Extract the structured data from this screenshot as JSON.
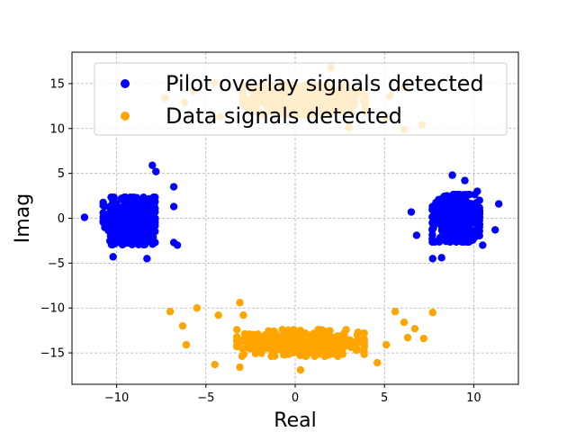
{
  "chart_data": {
    "type": "scatter",
    "title": "",
    "xlabel": "Real",
    "ylabel": "Imag",
    "xlim": [
      -12.5,
      12.5
    ],
    "ylim": [
      -18.5,
      18.5
    ],
    "xticks": [
      -10,
      -5,
      0,
      5,
      10
    ],
    "yticks": [
      -15,
      -10,
      -5,
      0,
      5,
      10,
      15
    ],
    "xtick_labels": [
      "−10",
      "−5",
      "0",
      "5",
      "10"
    ],
    "ytick_labels": [
      "−15",
      "−10",
      "−5",
      "0",
      "5",
      "10",
      "15"
    ],
    "grid": true,
    "legend_position": "top-right",
    "series": [
      {
        "name": "Pilot overlay signals detected",
        "color": "#0000ff",
        "clusters": [
          {
            "center": [
              -9.3,
              -0.3
            ],
            "spread": [
              1.1,
              1.6
            ],
            "count": 520,
            "seed": 11
          },
          {
            "center": [
              9.0,
              0.0
            ],
            "spread": [
              1.0,
              1.6
            ],
            "count": 520,
            "seed": 23
          }
        ],
        "points": [
          [
            -11.8,
            0.1
          ],
          [
            -8.0,
            5.9
          ],
          [
            -7.8,
            5.2
          ],
          [
            -6.8,
            3.5
          ],
          [
            -6.6,
            -3.0
          ],
          [
            -6.8,
            -2.7
          ],
          [
            -6.8,
            1.3
          ],
          [
            -8.3,
            -4.5
          ],
          [
            -10.2,
            -4.3
          ],
          [
            6.5,
            0.7
          ],
          [
            6.8,
            -1.9
          ],
          [
            7.7,
            -4.5
          ],
          [
            8.2,
            -4.4
          ],
          [
            8.8,
            4.8
          ],
          [
            9.5,
            4.2
          ],
          [
            11.4,
            1.6
          ],
          [
            11.2,
            -1.3
          ],
          [
            10.2,
            3.0
          ],
          [
            10.5,
            -3.0
          ]
        ]
      },
      {
        "name": "Data signals detected",
        "color": "#ffa500",
        "clusters": [
          {
            "center": [
              0.5,
              13.2
            ],
            "spread": [
              2.6,
              1.0
            ],
            "count": 560,
            "seed": 37
          },
          {
            "center": [
              0.3,
              -13.9
            ],
            "spread": [
              2.7,
              0.9
            ],
            "count": 560,
            "seed": 41
          }
        ],
        "points": [
          [
            -7.0,
            -10.4
          ],
          [
            -6.3,
            -12.0
          ],
          [
            -6.1,
            -14.1
          ],
          [
            -5.5,
            -10.0
          ],
          [
            -3.1,
            -9.4
          ],
          [
            -2.9,
            -10.8
          ],
          [
            -4.3,
            -10.8
          ],
          [
            5.6,
            -10.4
          ],
          [
            7.7,
            -10.5
          ],
          [
            6.1,
            -11.6
          ],
          [
            6.7,
            -12.3
          ],
          [
            6.3,
            -13.3
          ],
          [
            7.2,
            -13.4
          ],
          [
            4.6,
            -16.1
          ],
          [
            5.1,
            -14.1
          ],
          [
            -4.5,
            -16.3
          ],
          [
            -3.1,
            -16.6
          ],
          [
            0.3,
            -16.9
          ],
          [
            -7.3,
            13.4
          ],
          [
            -6.2,
            12.9
          ],
          [
            -5.7,
            14.2
          ],
          [
            -4.2,
            11.3
          ],
          [
            -4.5,
            15.1
          ],
          [
            2.0,
            16.8
          ],
          [
            7.1,
            10.4
          ],
          [
            6.1,
            9.9
          ],
          [
            5.1,
            11.2
          ],
          [
            3.0,
            10.1
          ],
          [
            6.1,
            14.6
          ],
          [
            5.3,
            13.6
          ]
        ]
      }
    ]
  }
}
